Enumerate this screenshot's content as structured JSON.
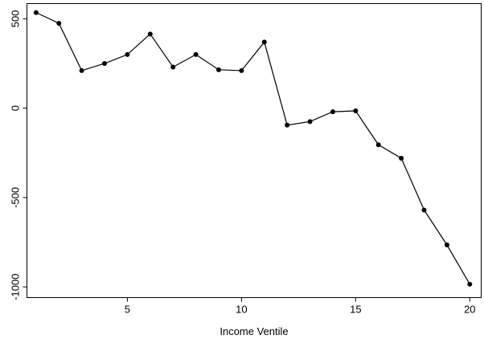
{
  "chart_data": {
    "type": "line",
    "title": "",
    "xlabel": "Income Ventile",
    "ylabel": "",
    "xlim": [
      0.6,
      20.5
    ],
    "ylim": [
      -1060,
      585
    ],
    "xticks": [
      5,
      10,
      15,
      20
    ],
    "yticks": [
      500,
      0,
      -500,
      -1000
    ],
    "xtick_labels": [
      "5",
      "10",
      "15",
      "20"
    ],
    "ytick_labels": [
      "500",
      "0",
      "-500",
      "-1000"
    ],
    "grid": false,
    "legend": "none",
    "colors": {
      "line": "#000000",
      "marker": "#000000"
    },
    "series": [
      {
        "x": [
          1,
          2,
          3,
          4,
          5,
          6,
          7,
          8,
          9,
          10,
          11,
          12,
          13,
          14,
          15,
          16,
          17,
          18,
          19,
          20
        ],
        "values": [
          535,
          475,
          210,
          250,
          300,
          415,
          230,
          300,
          215,
          210,
          370,
          -95,
          -75,
          -20,
          -15,
          -205,
          -280,
          -570,
          -765,
          -985
        ]
      }
    ]
  }
}
